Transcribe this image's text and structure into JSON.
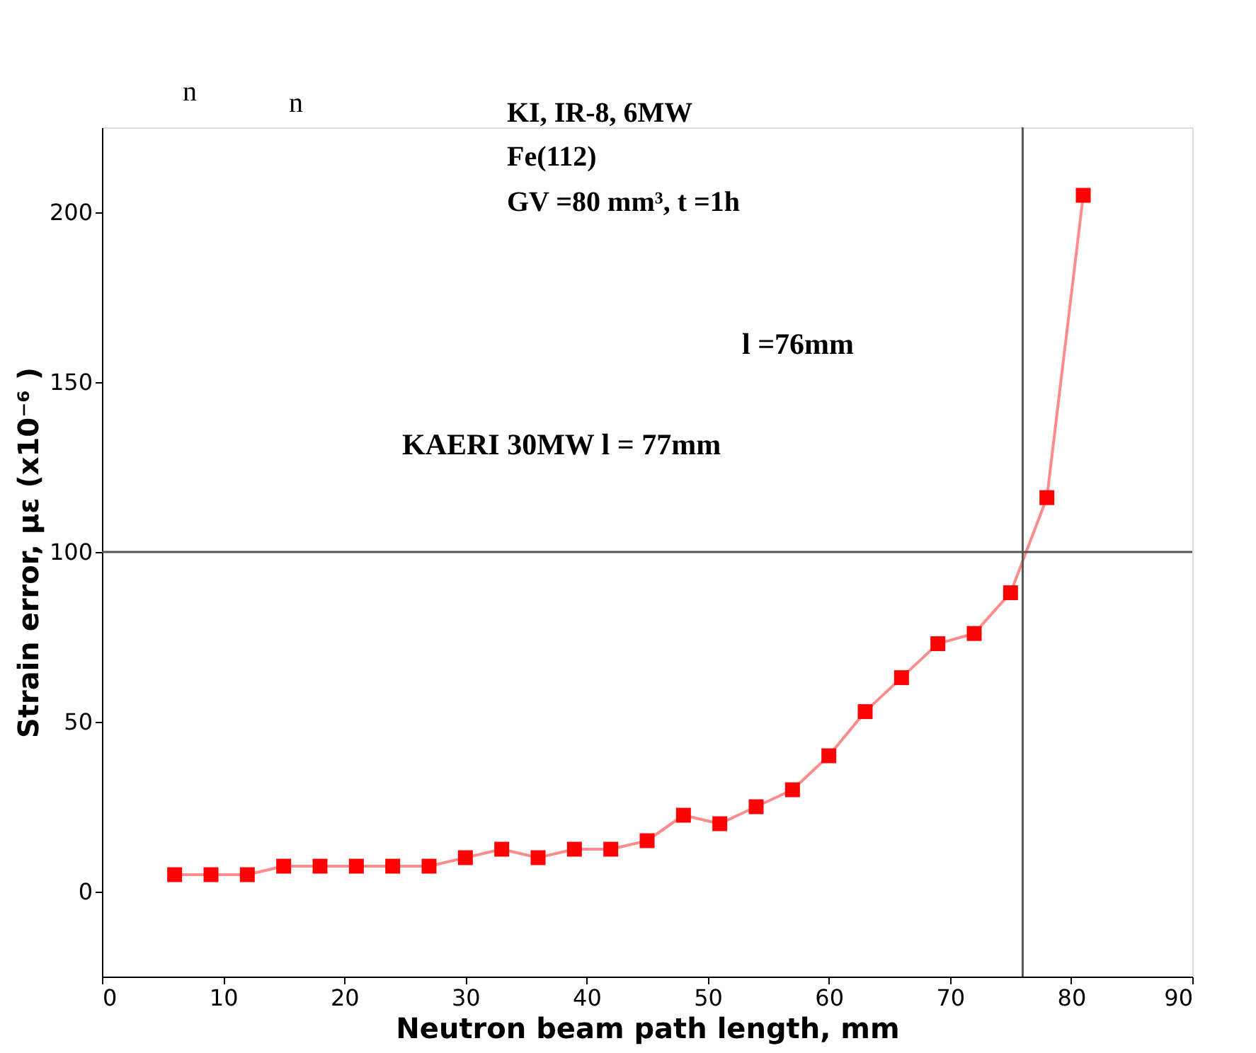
{
  "chart_data": {
    "type": "line",
    "xlabel": "Neutron beam path length, mm",
    "ylabel": "Strain error,  με  (x10⁻⁶ )",
    "x": [
      6,
      9,
      12,
      15,
      18,
      21,
      24,
      27,
      30,
      33,
      36,
      39,
      42,
      45,
      48,
      51,
      54,
      57,
      60,
      63,
      66,
      69,
      72,
      75,
      78,
      81
    ],
    "series": [
      {
        "color": "#ff0000",
        "values": [
          5,
          5,
          5,
          7.5,
          7.5,
          7.5,
          7.5,
          7.5,
          10,
          12.5,
          10,
          12.5,
          12.5,
          15,
          22.5,
          20,
          25,
          30,
          40,
          53,
          63,
          73,
          76,
          88,
          116,
          205
        ]
      }
    ],
    "marker": "square",
    "xlim": [
      0,
      90
    ],
    "xticks": [
      0,
      10,
      20,
      30,
      40,
      50,
      60,
      70,
      80,
      90
    ],
    "ylim": [
      -25,
      225
    ],
    "yticks": [
      0,
      50,
      100,
      150,
      200
    ],
    "grid": false,
    "ref_lines": [
      {
        "axis": "x",
        "value": 76,
        "color": "#555555"
      },
      {
        "axis": "y",
        "value": 100,
        "color": "#555555"
      }
    ],
    "annotations": [
      "n",
      "n",
      "KI, IR-8, 6MW",
      "Fe(112)",
      "GV =80 mm³, t =1h",
      "KAERI  30MW l = 77mm",
      "l =76mm"
    ]
  }
}
